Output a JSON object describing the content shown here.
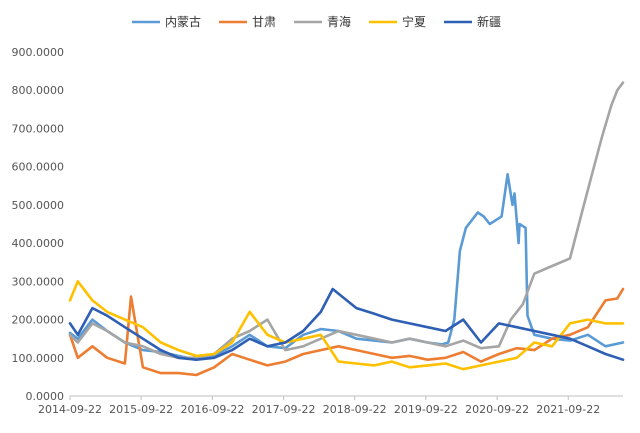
{
  "chart_data": {
    "type": "line",
    "title": "",
    "xlabel": "",
    "ylabel": "",
    "ylim": [
      0,
      900
    ],
    "yticks": [
      "0.0000",
      "100.0000",
      "200.0000",
      "300.0000",
      "400.0000",
      "500.0000",
      "600.0000",
      "700.0000",
      "800.0000",
      "900.0000"
    ],
    "xlim": [
      "2014-09-22",
      "2022-06-30"
    ],
    "xticks": [
      "2014-09-22",
      "2015-09-22",
      "2016-09-22",
      "2017-09-22",
      "2018-09-22",
      "2019-09-22",
      "2020-09-22",
      "2021-09-22"
    ],
    "grid": false,
    "legend": "top",
    "series": [
      {
        "name": "内蒙古",
        "color": "#5b9bd5",
        "x": [
          "2014-09-22",
          "2014-11-01",
          "2015-01-15",
          "2015-04-01",
          "2015-07-01",
          "2015-10-01",
          "2016-01-01",
          "2016-04-01",
          "2016-07-01",
          "2016-10-01",
          "2017-01-01",
          "2017-04-01",
          "2017-07-01",
          "2017-10-01",
          "2018-01-01",
          "2018-04-01",
          "2018-07-01",
          "2018-10-01",
          "2019-01-01",
          "2019-04-01",
          "2019-07-01",
          "2019-10-01",
          "2019-12-15",
          "2020-01-15",
          "2020-02-15",
          "2020-03-15",
          "2020-04-15",
          "2020-05-15",
          "2020-06-15",
          "2020-07-15",
          "2020-08-15",
          "2020-09-15",
          "2020-10-15",
          "2020-11-15",
          "2020-12-10",
          "2020-12-20",
          "2021-01-10",
          "2021-01-15",
          "2021-02-15",
          "2021-02-25",
          "2021-04-01",
          "2021-07-01",
          "2021-10-01",
          "2022-01-01",
          "2022-04-01",
          "2022-06-30"
        ],
        "values": [
          165,
          150,
          200,
          170,
          140,
          120,
          115,
          105,
          95,
          105,
          130,
          160,
          130,
          125,
          160,
          175,
          170,
          150,
          145,
          140,
          150,
          140,
          135,
          140,
          200,
          380,
          440,
          460,
          480,
          470,
          450,
          460,
          470,
          580,
          500,
          530,
          400,
          450,
          440,
          210,
          160,
          150,
          145,
          160,
          130,
          140
        ]
      },
      {
        "name": "甘肃",
        "color": "#ed7d31",
        "x": [
          "2014-09-22",
          "2014-11-01",
          "2015-01-15",
          "2015-04-01",
          "2015-07-01",
          "2015-08-01",
          "2015-10-01",
          "2016-01-01",
          "2016-04-01",
          "2016-07-01",
          "2016-10-01",
          "2017-01-01",
          "2017-04-01",
          "2017-07-01",
          "2017-10-01",
          "2018-01-01",
          "2018-04-01",
          "2018-07-01",
          "2018-10-01",
          "2019-01-01",
          "2019-04-01",
          "2019-07-01",
          "2019-10-01",
          "2020-01-01",
          "2020-04-01",
          "2020-07-01",
          "2020-10-01",
          "2021-01-01",
          "2021-04-01",
          "2021-07-01",
          "2021-10-01",
          "2022-01-01",
          "2022-04-01",
          "2022-06-01",
          "2022-06-30"
        ],
        "values": [
          160,
          100,
          130,
          100,
          85,
          260,
          75,
          60,
          60,
          55,
          75,
          110,
          95,
          80,
          90,
          110,
          120,
          130,
          120,
          110,
          100,
          105,
          95,
          100,
          115,
          90,
          110,
          125,
          120,
          150,
          160,
          180,
          250,
          255,
          280
        ]
      },
      {
        "name": "青海",
        "color": "#a5a5a5",
        "x": [
          "2014-09-22",
          "2014-11-01",
          "2015-01-15",
          "2015-04-01",
          "2015-07-01",
          "2015-10-01",
          "2016-01-01",
          "2016-04-01",
          "2016-07-01",
          "2016-10-01",
          "2017-01-01",
          "2017-04-01",
          "2017-07-01",
          "2017-10-01",
          "2018-01-01",
          "2018-04-01",
          "2018-07-01",
          "2018-10-01",
          "2019-01-01",
          "2019-04-01",
          "2019-07-01",
          "2019-10-01",
          "2020-01-01",
          "2020-04-01",
          "2020-07-01",
          "2020-10-01",
          "2020-12-01",
          "2021-01-01",
          "2021-02-01",
          "2021-04-01",
          "2021-07-01",
          "2021-10-01",
          "2021-12-01",
          "2022-02-01",
          "2022-03-15",
          "2022-05-01",
          "2022-06-01",
          "2022-06-30"
        ],
        "values": [
          160,
          140,
          190,
          170,
          140,
          130,
          110,
          100,
          100,
          110,
          150,
          170,
          200,
          120,
          130,
          150,
          170,
          160,
          150,
          140,
          150,
          140,
          130,
          145,
          125,
          130,
          200,
          220,
          240,
          320,
          340,
          360,
          480,
          600,
          680,
          760,
          800,
          820
        ]
      },
      {
        "name": "宁夏",
        "color": "#ffc000",
        "x": [
          "2014-09-22",
          "2014-11-01",
          "2015-01-15",
          "2015-04-01",
          "2015-07-01",
          "2015-10-01",
          "2016-01-01",
          "2016-04-01",
          "2016-07-01",
          "2016-10-01",
          "2017-01-01",
          "2017-04-01",
          "2017-07-01",
          "2017-10-01",
          "2018-01-01",
          "2018-04-01",
          "2018-07-01",
          "2018-10-01",
          "2019-01-01",
          "2019-04-01",
          "2019-07-01",
          "2019-10-01",
          "2020-01-01",
          "2020-04-01",
          "2020-07-01",
          "2020-10-01",
          "2021-01-01",
          "2021-04-01",
          "2021-07-01",
          "2021-10-01",
          "2022-01-01",
          "2022-04-01",
          "2022-06-30"
        ],
        "values": [
          250,
          300,
          250,
          220,
          200,
          180,
          140,
          120,
          105,
          110,
          140,
          220,
          160,
          140,
          150,
          160,
          90,
          85,
          80,
          90,
          75,
          80,
          85,
          70,
          80,
          90,
          100,
          140,
          130,
          190,
          200,
          190,
          190
        ]
      },
      {
        "name": "新疆",
        "color": "#2e5fb4",
        "x": [
          "2014-09-22",
          "2014-11-01",
          "2015-01-15",
          "2015-04-01",
          "2015-07-01",
          "2015-10-01",
          "2016-01-01",
          "2016-04-01",
          "2016-07-01",
          "2016-10-01",
          "2017-01-01",
          "2017-04-01",
          "2017-07-01",
          "2017-10-01",
          "2018-01-01",
          "2018-04-01",
          "2018-06-01",
          "2018-10-01",
          "2019-01-01",
          "2019-04-01",
          "2019-07-01",
          "2019-10-01",
          "2020-01-01",
          "2020-04-01",
          "2020-07-01",
          "2020-10-01",
          "2021-01-01",
          "2021-04-01",
          "2021-07-01",
          "2021-10-01",
          "2022-01-01",
          "2022-04-01",
          "2022-06-30"
        ],
        "values": [
          190,
          160,
          230,
          210,
          180,
          150,
          120,
          100,
          95,
          100,
          120,
          150,
          130,
          140,
          170,
          220,
          280,
          230,
          215,
          200,
          190,
          180,
          170,
          200,
          140,
          190,
          180,
          170,
          160,
          150,
          130,
          110,
          95
        ]
      }
    ]
  }
}
